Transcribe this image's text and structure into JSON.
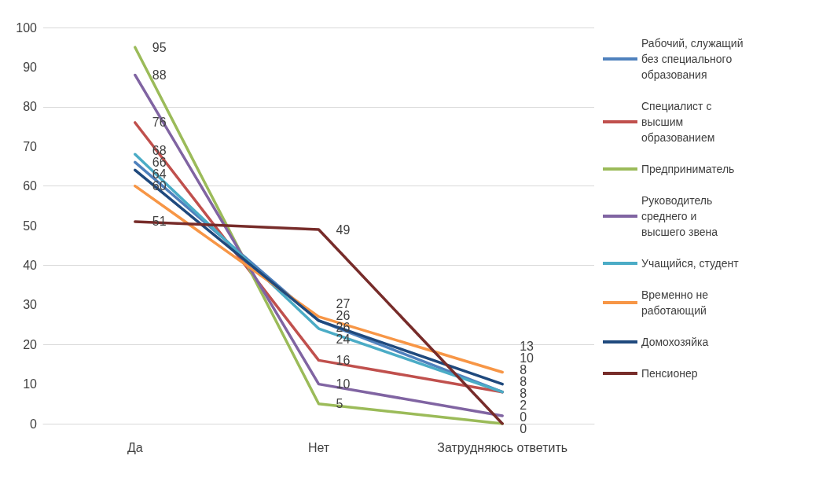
{
  "chart_data": {
    "type": "line",
    "categories": [
      "Да",
      "Нет",
      "Затрудняюсь ответить"
    ],
    "series": [
      {
        "name": "Рабочий, служащий без специального образования",
        "color": "#4f81bd",
        "values": [
          66,
          26,
          8
        ]
      },
      {
        "name": "Специалист с высшим образованием",
        "color": "#c0504d",
        "values": [
          76,
          16,
          8
        ]
      },
      {
        "name": "Предприниматель",
        "color": "#9bbb59",
        "values": [
          95,
          5,
          0
        ]
      },
      {
        "name": "Руководитель среднего и высшего звена",
        "color": "#8064a2",
        "values": [
          88,
          10,
          2
        ]
      },
      {
        "name": "Учащийся, студент",
        "color": "#4bacc6",
        "values": [
          68,
          24,
          8
        ]
      },
      {
        "name": "Временно не работающий",
        "color": "#f79646",
        "values": [
          60,
          27,
          13
        ]
      },
      {
        "name": "Домохозяйка",
        "color": "#1f497d",
        "values": [
          64,
          26,
          10
        ]
      },
      {
        "name": "Пенсионер",
        "color": "#772c2a",
        "values": [
          51,
          49,
          0
        ]
      }
    ],
    "ylim": [
      0,
      100
    ],
    "yticks": [
      0,
      10,
      20,
      30,
      40,
      50,
      60,
      70,
      80,
      90,
      100
    ],
    "grid": "y",
    "legend": "right",
    "data_labels": true,
    "marker": "none",
    "line_style": "solid"
  }
}
